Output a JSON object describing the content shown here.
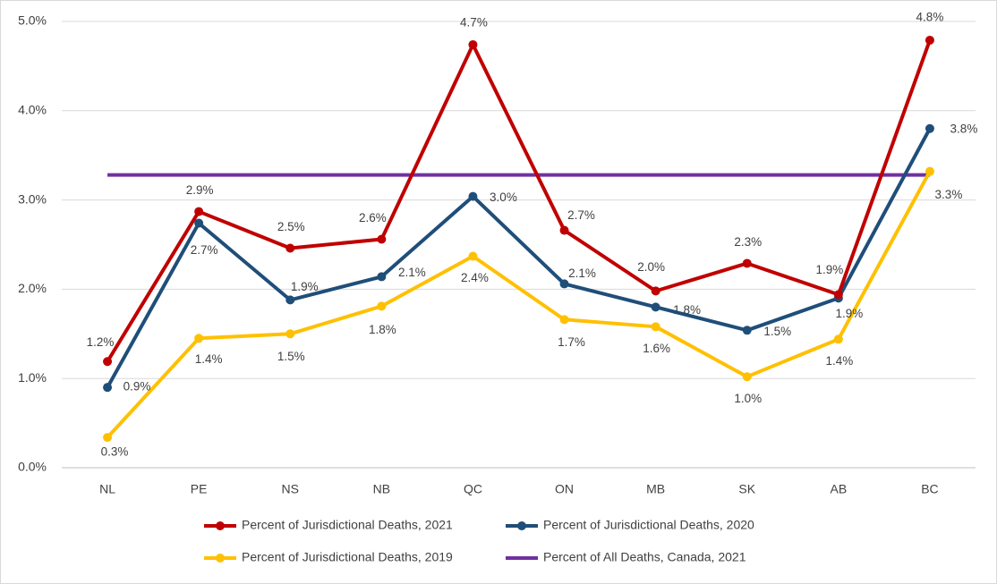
{
  "chart_data": {
    "type": "line",
    "categories": [
      "NL",
      "PE",
      "NS",
      "NB",
      "QC",
      "ON",
      "MB",
      "SK",
      "AB",
      "BC"
    ],
    "series": [
      {
        "name": "Percent of Jurisdictional Deaths, 2021",
        "color": "#c00000",
        "values": [
          1.19,
          2.87,
          2.46,
          2.56,
          4.74,
          2.66,
          1.98,
          2.29,
          1.94,
          4.79
        ],
        "value_labels": [
          "1.2%",
          "2.9%",
          "2.5%",
          "2.6%",
          "4.7%",
          "2.7%",
          "2.0%",
          "2.3%",
          "1.9%",
          "4.8%"
        ]
      },
      {
        "name": "Percent of Jurisdictional Deaths, 2020",
        "color": "#1f4e79",
        "values": [
          0.9,
          2.74,
          1.88,
          2.14,
          3.04,
          2.06,
          1.8,
          1.54,
          1.9,
          3.8
        ],
        "value_labels": [
          "0.9%",
          "2.7%",
          "1.9%",
          "2.1%",
          "3.0%",
          "2.1%",
          "1.8%",
          "1.5%",
          "1.9%",
          "3.8%"
        ]
      },
      {
        "name": "Percent of Jurisdictional Deaths, 2019",
        "color": "#ffc000",
        "values": [
          0.34,
          1.45,
          1.5,
          1.81,
          2.37,
          1.66,
          1.58,
          1.02,
          1.44,
          3.32
        ],
        "value_labels": [
          "0.3%",
          "1.4%",
          "1.5%",
          "1.8%",
          "2.4%",
          "1.7%",
          "1.6%",
          "1.0%",
          "1.4%",
          "3.3%"
        ]
      },
      {
        "name": "Percent of All Deaths, Canada, 2021",
        "color": "#7030a0",
        "values": [
          3.28,
          3.28,
          3.28,
          3.28,
          3.28,
          3.28,
          3.28,
          3.28,
          3.28,
          3.28
        ]
      }
    ],
    "ylim": [
      0,
      5
    ],
    "yticks": [
      {
        "value": 0,
        "label": "0.0%"
      },
      {
        "value": 1,
        "label": "1.0%"
      },
      {
        "value": 2,
        "label": "2.0%"
      },
      {
        "value": 3,
        "label": "3.0%"
      },
      {
        "value": 4,
        "label": "4.0%"
      },
      {
        "value": 5,
        "label": "5.0%"
      }
    ],
    "grid": true
  }
}
